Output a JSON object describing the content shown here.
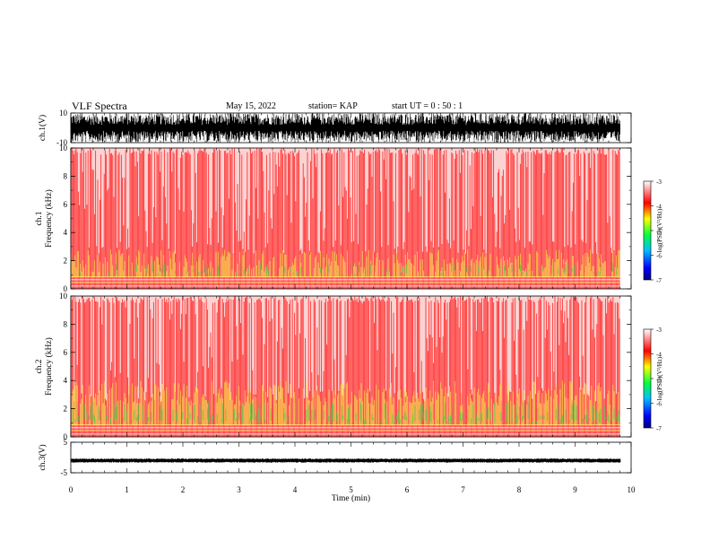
{
  "header": {
    "title": "VLF Spectra",
    "date": "May 15, 2022",
    "station": "station= KAP",
    "start": "start  UT =   0 : 50 : 1"
  },
  "chart_data": [
    {
      "type": "line",
      "ylabel": "ch.1(V)",
      "ylim": [
        -10,
        10
      ],
      "ytick_labels": [
        "10",
        "-10"
      ],
      "description_series": "broadband waveform, amplitude mostly between -10 and 10 V, saturating",
      "xlim": [
        0,
        10
      ]
    },
    {
      "type": "heatmap",
      "ylabel": "ch.1\nFrequency (kHz)",
      "ylim": [
        0,
        10
      ],
      "ytick_labels": [
        "0",
        "2",
        "4",
        "6",
        "8",
        "10"
      ],
      "xlim": [
        0,
        10
      ],
      "colorbar": {
        "label": "log(PSD)(V²/Hz)",
        "range": [
          -7,
          -3
        ],
        "tick_labels": [
          "-3",
          "-4",
          "-5",
          "-6",
          "-7"
        ]
      }
    },
    {
      "type": "heatmap",
      "ylabel": "ch.2\nFrequency (kHz)",
      "ylim": [
        0,
        10
      ],
      "ytick_labels": [
        "0",
        "2",
        "4",
        "6",
        "8",
        "10"
      ],
      "xlim": [
        0,
        10
      ],
      "colorbar": {
        "label": "log(PSD)(V²/Hz)",
        "range": [
          -7,
          -3
        ],
        "tick_labels": [
          "-3",
          "-4",
          "-5",
          "-6",
          "-7"
        ]
      }
    },
    {
      "type": "line",
      "ylabel": "ch.3(V)",
      "ylim": [
        -5,
        5
      ],
      "ytick_labels": [
        "5",
        "-5"
      ],
      "values_level": -1,
      "xlim": [
        0,
        10
      ],
      "xlabel": "Time (min)",
      "xtick_labels": [
        "0",
        "1",
        "2",
        "3",
        "4",
        "5",
        "6",
        "7",
        "8",
        "9",
        "10"
      ]
    }
  ],
  "colors": {
    "spec_bg": "#ffffff",
    "spec_red": "#ff1a1a",
    "spec_yellow": "#f5e23a",
    "spec_green": "#3ccf3c",
    "axis": "#000000"
  }
}
